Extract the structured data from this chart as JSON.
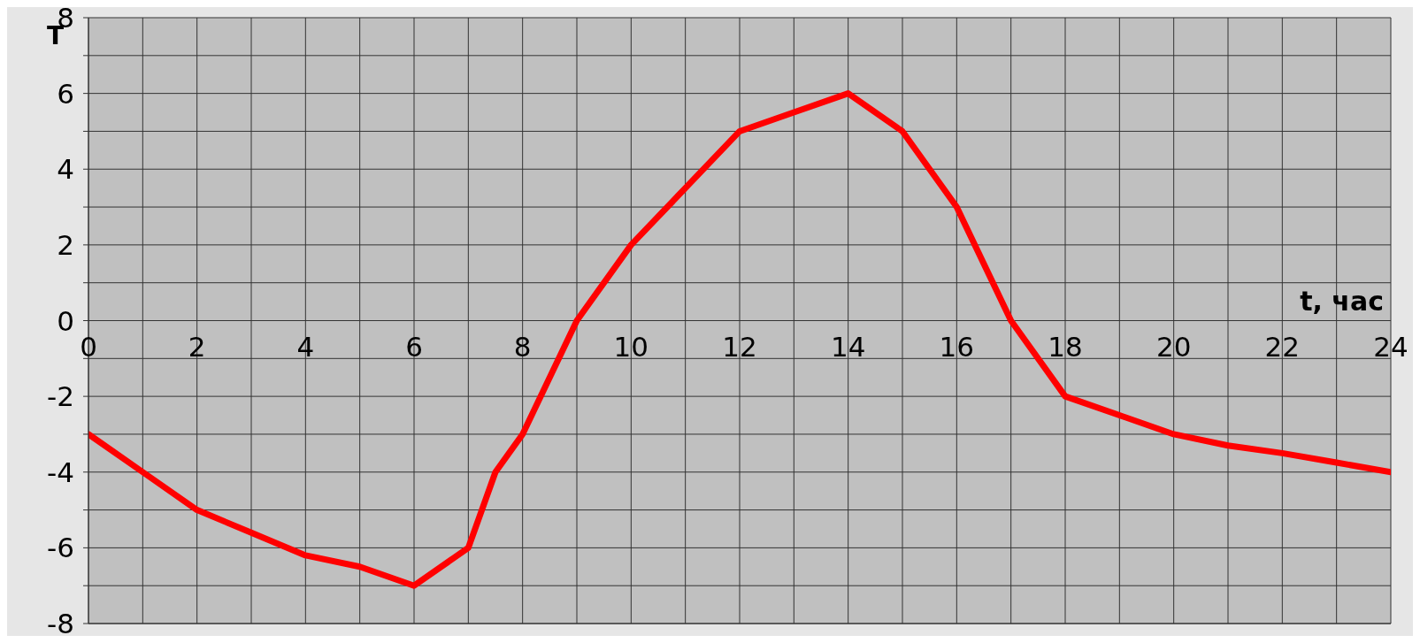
{
  "chart_data": {
    "type": "line",
    "xlabel": "t, час",
    "ylabel": "T",
    "x": [
      0,
      1,
      2,
      3,
      4,
      5,
      6,
      7,
      7.5,
      8,
      9,
      10,
      11,
      12,
      13,
      14,
      15,
      16,
      17,
      18,
      19,
      20,
      21,
      22,
      23,
      24
    ],
    "series": [
      {
        "color": "#ff0000",
        "values": [
          -3,
          -4,
          -5,
          -5.6,
          -6.2,
          -6.5,
          -7,
          -6,
          -4,
          -3,
          0,
          2,
          3.5,
          5,
          5.5,
          6,
          5,
          3,
          0,
          -2,
          -2.5,
          -3,
          -3.3,
          -3.5,
          -3.75,
          -4
        ]
      }
    ],
    "xlim": [
      0,
      24
    ],
    "xticks": [
      0,
      {
        "value": 1,
        "label": null
      },
      2,
      {
        "value": 3,
        "label": null
      },
      4,
      {
        "value": 5,
        "label": null
      },
      6,
      {
        "value": 7,
        "label": null
      },
      8,
      {
        "value": 9,
        "label": null
      },
      10,
      {
        "value": 11,
        "label": null
      },
      12,
      {
        "value": 13,
        "label": null
      },
      14,
      {
        "value": 15,
        "label": null
      },
      16,
      {
        "value": 17,
        "label": null
      },
      18,
      {
        "value": 19,
        "label": null
      },
      20,
      {
        "value": 21,
        "label": null
      },
      22,
      {
        "value": 23,
        "label": null
      },
      24
    ],
    "ylim": [
      -8,
      8
    ],
    "yticks": [
      -8,
      {
        "value": -7,
        "label": null
      },
      -6,
      {
        "value": -5,
        "label": null
      },
      -4,
      {
        "value": -3,
        "label": null
      },
      -2,
      {
        "value": -1,
        "label": null
      },
      0,
      {
        "value": 1,
        "label": null
      },
      2,
      {
        "value": 3,
        "label": null
      },
      4,
      {
        "value": 5,
        "label": null
      },
      6,
      {
        "value": 7,
        "label": null
      },
      8
    ],
    "grid": true,
    "marker": "none",
    "line_style": "solid"
  }
}
